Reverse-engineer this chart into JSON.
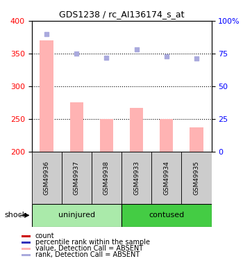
{
  "title": "GDS1238 / rc_AI136174_s_at",
  "samples": [
    "GSM49936",
    "GSM49937",
    "GSM49938",
    "GSM49933",
    "GSM49934",
    "GSM49935"
  ],
  "bar_values": [
    370,
    275,
    250,
    267,
    250,
    237
  ],
  "rank_values": [
    90,
    75,
    72,
    78,
    73,
    71
  ],
  "ylim_left": [
    200,
    400
  ],
  "ylim_right": [
    0,
    100
  ],
  "yticks_left": [
    200,
    250,
    300,
    350,
    400
  ],
  "yticks_right": [
    0,
    25,
    50,
    75,
    100
  ],
  "bar_color": "#ffb3b3",
  "rank_color": "#aaaadd",
  "group1_label": "uninjured",
  "group2_label": "contused",
  "group1_color": "#aaeaaa",
  "group2_color": "#44cc44",
  "shock_label": "shock",
  "legend_colors": [
    "#cc0000",
    "#3333bb",
    "#ffb3b3",
    "#aaaadd"
  ],
  "legend_labels": [
    "count",
    "percentile rank within the sample",
    "value, Detection Call = ABSENT",
    "rank, Detection Call = ABSENT"
  ],
  "hline_values": [
    250,
    300,
    350
  ],
  "figsize": [
    3.5,
    3.75
  ],
  "dpi": 100
}
